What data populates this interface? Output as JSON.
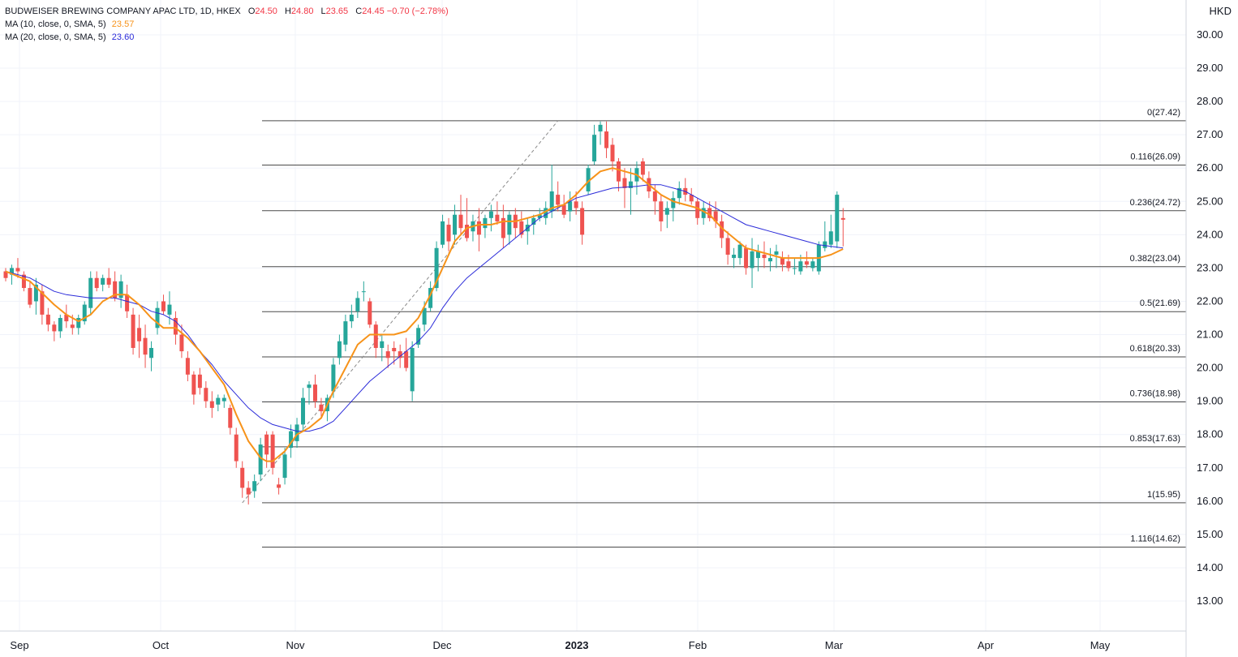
{
  "symbol": {
    "name": "BUDWEISER BREWING COMPANY APAC LTD, 1D, HKEX",
    "ohlc": [
      {
        "label": "O",
        "value": "24.50"
      },
      {
        "label": "H",
        "value": "24.80"
      },
      {
        "label": "L",
        "value": "23.65"
      },
      {
        "label": "C",
        "value": "24.45"
      }
    ],
    "change": "−0.70 (−2.78%)"
  },
  "indicators": [
    {
      "label": "MA (10, close, 0, SMA, 5)",
      "value": "23.57",
      "color": "#f7931a"
    },
    {
      "label": "MA (20, close, 0, SMA, 5)",
      "value": "23.60",
      "color": "#2b2bd9"
    }
  ],
  "currency": "HKD",
  "colors": {
    "up": "#26a69a",
    "down": "#ef5350",
    "grid": "#f0f3fa",
    "fib": "#4a4a4a"
  },
  "chart_data": {
    "type": "candlestick",
    "x_labels": [
      "Sep",
      "Oct",
      "Nov",
      "Dec",
      "2023",
      "Feb",
      "Mar",
      "Apr",
      "May"
    ],
    "y_ticks": [
      "13.00",
      "14.00",
      "15.00",
      "16.00",
      "17.00",
      "18.00",
      "19.00",
      "20.00",
      "21.00",
      "22.00",
      "23.00",
      "24.00",
      "25.00",
      "26.00",
      "27.00",
      "28.00",
      "29.00",
      "30.00"
    ],
    "ylim": [
      12.2,
      30.6
    ],
    "fib_levels": [
      {
        "ratio": 0,
        "price": 27.42,
        "label": "0(27.42)"
      },
      {
        "ratio": 0.116,
        "price": 26.09,
        "label": "0.116(26.09)"
      },
      {
        "ratio": 0.236,
        "price": 24.72,
        "label": "0.236(24.72)"
      },
      {
        "ratio": 0.382,
        "price": 23.04,
        "label": "0.382(23.04)"
      },
      {
        "ratio": 0.5,
        "price": 21.69,
        "label": "0.5(21.69)"
      },
      {
        "ratio": 0.618,
        "price": 20.33,
        "label": "0.618(20.33)"
      },
      {
        "ratio": 0.736,
        "price": 18.98,
        "label": "0.736(18.98)"
      },
      {
        "ratio": 0.853,
        "price": 17.63,
        "label": "0.853(17.63)"
      },
      {
        "ratio": 1,
        "price": 15.95,
        "label": "1(15.95)"
      },
      {
        "ratio": 1.116,
        "price": 14.62,
        "label": "1.116(14.62)"
      }
    ],
    "fib_trend": [
      [
        39,
        15.95
      ],
      [
        91,
        27.42
      ]
    ],
    "candles": [
      [
        0,
        22.9,
        23.0,
        22.6,
        22.7
      ],
      [
        1,
        22.8,
        23.1,
        22.5,
        23.0
      ],
      [
        2,
        23.0,
        23.3,
        22.7,
        22.9
      ],
      [
        3,
        22.8,
        22.9,
        22.3,
        22.4
      ],
      [
        4,
        22.4,
        22.6,
        21.8,
        21.9
      ],
      [
        5,
        22.0,
        22.7,
        21.6,
        22.5
      ],
      [
        6,
        22.3,
        22.5,
        21.3,
        21.6
      ],
      [
        7,
        21.6,
        21.8,
        21.1,
        21.3
      ],
      [
        8,
        21.3,
        21.4,
        20.8,
        21.1
      ],
      [
        9,
        21.1,
        21.6,
        20.9,
        21.5
      ],
      [
        10,
        21.6,
        21.9,
        21.2,
        21.4
      ],
      [
        11,
        21.3,
        21.6,
        21.0,
        21.2
      ],
      [
        12,
        21.2,
        21.6,
        21.0,
        21.5
      ],
      [
        13,
        21.4,
        22.0,
        21.3,
        21.9
      ],
      [
        14,
        21.8,
        22.9,
        21.6,
        22.7
      ],
      [
        15,
        22.7,
        22.9,
        22.3,
        22.4
      ],
      [
        16,
        22.5,
        22.8,
        22.3,
        22.7
      ],
      [
        17,
        22.7,
        23.0,
        22.4,
        22.5
      ],
      [
        18,
        22.6,
        22.9,
        22.0,
        22.1
      ],
      [
        19,
        22.1,
        22.8,
        21.8,
        22.6
      ],
      [
        20,
        22.2,
        22.5,
        21.5,
        21.7
      ],
      [
        21,
        21.6,
        21.8,
        20.4,
        20.6
      ],
      [
        22,
        21.2,
        21.6,
        20.3,
        20.8
      ],
      [
        23,
        20.9,
        21.3,
        20.0,
        20.4
      ],
      [
        24,
        20.3,
        20.8,
        19.9,
        20.6
      ],
      [
        25,
        21.2,
        22.0,
        21.0,
        21.8
      ],
      [
        26,
        22.0,
        22.2,
        21.6,
        21.7
      ],
      [
        27,
        21.6,
        22.3,
        21.3,
        21.9
      ],
      [
        28,
        21.5,
        21.7,
        20.7,
        21.0
      ],
      [
        29,
        21.0,
        21.3,
        20.3,
        20.5
      ],
      [
        30,
        20.3,
        20.5,
        19.6,
        19.8
      ],
      [
        31,
        19.8,
        19.9,
        18.9,
        19.2
      ],
      [
        32,
        19.8,
        20.0,
        19.2,
        19.4
      ],
      [
        33,
        19.4,
        19.6,
        18.8,
        19.0
      ],
      [
        34,
        19.0,
        19.3,
        18.5,
        18.8
      ],
      [
        35,
        18.9,
        19.2,
        18.7,
        19.1
      ],
      [
        36,
        19.0,
        19.2,
        18.8,
        19.1
      ],
      [
        37,
        18.8,
        18.9,
        18.0,
        18.2
      ],
      [
        38,
        18.0,
        18.2,
        17.0,
        17.2
      ],
      [
        39,
        17.0,
        17.2,
        16.1,
        16.4
      ],
      [
        40,
        16.4,
        16.6,
        15.9,
        16.2
      ],
      [
        41,
        16.3,
        16.8,
        16.1,
        16.6
      ],
      [
        42,
        16.8,
        17.9,
        16.6,
        17.7
      ],
      [
        43,
        18.0,
        18.1,
        17.0,
        17.4
      ],
      [
        44,
        18.0,
        18.1,
        16.8,
        17.0
      ],
      [
        45,
        16.5,
        16.7,
        16.2,
        16.4
      ],
      [
        46,
        16.7,
        17.6,
        16.5,
        17.4
      ],
      [
        47,
        17.6,
        18.3,
        17.3,
        18.1
      ],
      [
        48,
        17.8,
        18.5,
        17.6,
        18.3
      ],
      [
        49,
        18.3,
        19.4,
        18.1,
        19.1
      ],
      [
        50,
        19.4,
        19.6,
        18.9,
        19.5
      ],
      [
        51,
        19.5,
        19.8,
        18.8,
        19.0
      ],
      [
        52,
        18.9,
        19.1,
        18.5,
        18.7
      ],
      [
        53,
        18.7,
        19.2,
        18.4,
        19.1
      ],
      [
        54,
        19.3,
        20.3,
        19.1,
        20.1
      ],
      [
        55,
        20.3,
        21.0,
        20.1,
        20.8
      ],
      [
        56,
        20.7,
        21.6,
        20.5,
        21.4
      ],
      [
        57,
        21.4,
        21.9,
        21.2,
        21.6
      ],
      [
        58,
        21.7,
        22.3,
        21.5,
        22.1
      ],
      [
        59,
        22.3,
        22.6,
        22.0,
        22.3
      ],
      [
        60,
        22.0,
        22.1,
        21.2,
        21.3
      ],
      [
        61,
        21.3,
        21.4,
        20.3,
        20.6
      ],
      [
        62,
        20.6,
        21.0,
        20.2,
        20.8
      ],
      [
        63,
        20.5,
        20.7,
        20.0,
        20.3
      ],
      [
        64,
        20.6,
        20.8,
        20.1,
        20.5
      ],
      [
        65,
        20.5,
        20.7,
        20.0,
        20.3
      ],
      [
        66,
        20.5,
        20.9,
        19.9,
        20.0
      ],
      [
        67,
        19.3,
        20.8,
        19.0,
        20.6
      ],
      [
        68,
        20.7,
        21.3,
        20.6,
        21.2
      ],
      [
        69,
        21.3,
        22.0,
        21.1,
        21.8
      ],
      [
        70,
        21.8,
        22.6,
        21.7,
        22.4
      ],
      [
        71,
        22.4,
        23.8,
        22.3,
        23.6
      ],
      [
        72,
        23.7,
        24.6,
        23.6,
        24.4
      ],
      [
        73,
        24.3,
        24.5,
        23.5,
        23.8
      ],
      [
        74,
        24.0,
        24.9,
        23.7,
        24.6
      ],
      [
        75,
        24.6,
        25.2,
        24.0,
        24.2
      ],
      [
        76,
        24.3,
        25.1,
        23.8,
        23.9
      ],
      [
        77,
        24.1,
        24.6,
        23.8,
        24.4
      ],
      [
        78,
        24.4,
        24.8,
        23.5,
        24.0
      ],
      [
        79,
        24.2,
        24.6,
        23.9,
        24.5
      ],
      [
        80,
        24.5,
        24.9,
        24.1,
        24.7
      ],
      [
        81,
        24.6,
        25.0,
        24.3,
        24.4
      ],
      [
        82,
        24.5,
        24.9,
        23.6,
        23.9
      ],
      [
        83,
        24.0,
        24.7,
        23.7,
        24.6
      ],
      [
        84,
        24.6,
        24.8,
        23.9,
        24.2
      ],
      [
        85,
        24.4,
        24.7,
        23.9,
        24.0
      ],
      [
        86,
        24.1,
        24.5,
        23.7,
        24.3
      ],
      [
        87,
        24.3,
        24.6,
        24.0,
        24.5
      ],
      [
        88,
        24.5,
        24.8,
        24.4,
        24.6
      ],
      [
        89,
        24.5,
        25.0,
        24.3,
        24.8
      ],
      [
        90,
        24.7,
        26.1,
        24.5,
        25.3
      ],
      [
        91,
        25.2,
        25.6,
        24.7,
        24.9
      ],
      [
        92,
        24.9,
        25.2,
        24.5,
        24.6
      ],
      [
        93,
        24.7,
        25.3,
        24.4,
        25.0
      ],
      [
        94,
        25.0,
        25.3,
        24.6,
        24.8
      ],
      [
        95,
        24.8,
        25.0,
        23.7,
        24.0
      ],
      [
        96,
        25.3,
        26.1,
        25.2,
        26.0
      ],
      [
        97,
        26.2,
        27.3,
        26.1,
        27.0
      ],
      [
        98,
        27.1,
        27.4,
        26.7,
        27.3
      ],
      [
        99,
        27.1,
        27.4,
        26.3,
        26.6
      ],
      [
        100,
        26.7,
        26.9,
        25.9,
        26.2
      ],
      [
        101,
        26.2,
        26.3,
        25.3,
        25.6
      ],
      [
        102,
        25.7,
        26.0,
        24.8,
        25.4
      ],
      [
        103,
        25.4,
        26.0,
        24.6,
        25.6
      ],
      [
        104,
        25.6,
        26.2,
        25.2,
        26.0
      ],
      [
        105,
        26.2,
        26.3,
        25.6,
        25.8
      ],
      [
        106,
        25.7,
        25.9,
        25.1,
        25.3
      ],
      [
        107,
        25.3,
        25.5,
        24.6,
        25.0
      ],
      [
        108,
        25.0,
        25.2,
        24.1,
        24.4
      ],
      [
        109,
        24.6,
        25.0,
        24.2,
        24.8
      ],
      [
        110,
        24.8,
        25.3,
        24.4,
        25.1
      ],
      [
        111,
        25.1,
        25.6,
        24.9,
        25.4
      ],
      [
        112,
        25.4,
        25.7,
        25.0,
        25.2
      ],
      [
        113,
        25.2,
        25.4,
        24.9,
        25.0
      ],
      [
        114,
        25.0,
        25.1,
        24.3,
        24.5
      ],
      [
        115,
        24.5,
        25.0,
        24.3,
        24.8
      ],
      [
        116,
        24.8,
        25.0,
        24.4,
        24.5
      ],
      [
        117,
        24.7,
        25.0,
        24.2,
        24.4
      ],
      [
        118,
        24.4,
        24.6,
        23.6,
        23.9
      ],
      [
        119,
        23.9,
        24.1,
        23.1,
        23.4
      ],
      [
        120,
        23.3,
        23.6,
        23.0,
        23.4
      ],
      [
        121,
        23.3,
        23.8,
        23.1,
        23.7
      ],
      [
        122,
        23.6,
        23.7,
        22.8,
        23.0
      ],
      [
        123,
        23.0,
        23.9,
        22.4,
        23.5
      ],
      [
        124,
        23.3,
        23.7,
        22.9,
        23.5
      ],
      [
        125,
        23.4,
        23.8,
        23.0,
        23.3
      ],
      [
        126,
        23.2,
        23.6,
        22.9,
        23.3
      ],
      [
        127,
        23.4,
        23.7,
        23.0,
        23.5
      ],
      [
        128,
        23.3,
        23.5,
        22.9,
        23.1
      ],
      [
        129,
        23.2,
        23.4,
        22.9,
        23.0
      ],
      [
        130,
        23.0,
        23.3,
        22.8,
        23.0
      ],
      [
        131,
        22.9,
        23.4,
        22.8,
        23.2
      ],
      [
        132,
        23.2,
        23.5,
        23.0,
        23.1
      ],
      [
        133,
        23.0,
        23.3,
        22.9,
        23.2
      ],
      [
        134,
        22.9,
        23.8,
        22.8,
        23.7
      ],
      [
        135,
        23.6,
        24.4,
        23.5,
        23.8
      ],
      [
        136,
        23.7,
        24.6,
        23.6,
        24.1
      ],
      [
        137,
        23.8,
        25.3,
        23.6,
        25.2
      ],
      [
        138,
        24.5,
        24.8,
        23.65,
        24.45
      ]
    ],
    "ma10": [
      [
        0,
        22.9
      ],
      [
        4,
        22.6
      ],
      [
        8,
        21.9
      ],
      [
        10,
        21.6
      ],
      [
        12,
        21.4
      ],
      [
        14,
        21.6
      ],
      [
        16,
        22.0
      ],
      [
        18,
        22.2
      ],
      [
        20,
        22.2
      ],
      [
        22,
        21.9
      ],
      [
        24,
        21.5
      ],
      [
        26,
        21.2
      ],
      [
        28,
        21.2
      ],
      [
        30,
        20.9
      ],
      [
        32,
        20.5
      ],
      [
        34,
        20.0
      ],
      [
        36,
        19.5
      ],
      [
        38,
        18.6
      ],
      [
        40,
        17.8
      ],
      [
        42,
        17.3
      ],
      [
        43,
        17.2
      ],
      [
        44,
        17.2
      ],
      [
        46,
        17.5
      ],
      [
        48,
        18.0
      ],
      [
        50,
        18.2
      ],
      [
        52,
        18.5
      ],
      [
        54,
        19.3
      ],
      [
        56,
        20.0
      ],
      [
        58,
        20.7
      ],
      [
        60,
        21.0
      ],
      [
        62,
        21.0
      ],
      [
        64,
        21.0
      ],
      [
        66,
        21.1
      ],
      [
        68,
        21.5
      ],
      [
        70,
        22.2
      ],
      [
        72,
        23.0
      ],
      [
        74,
        23.8
      ],
      [
        76,
        24.2
      ],
      [
        78,
        24.3
      ],
      [
        80,
        24.3
      ],
      [
        82,
        24.4
      ],
      [
        84,
        24.4
      ],
      [
        86,
        24.5
      ],
      [
        88,
        24.6
      ],
      [
        90,
        24.8
      ],
      [
        92,
        24.9
      ],
      [
        94,
        25.2
      ],
      [
        96,
        25.6
      ],
      [
        98,
        25.9
      ],
      [
        100,
        26.0
      ],
      [
        102,
        25.9
      ],
      [
        104,
        25.8
      ],
      [
        106,
        25.5
      ],
      [
        108,
        25.2
      ],
      [
        110,
        25.0
      ],
      [
        112,
        24.9
      ],
      [
        114,
        24.8
      ],
      [
        116,
        24.6
      ],
      [
        118,
        24.2
      ],
      [
        120,
        23.9
      ],
      [
        122,
        23.6
      ],
      [
        124,
        23.5
      ],
      [
        126,
        23.4
      ],
      [
        128,
        23.3
      ],
      [
        130,
        23.3
      ],
      [
        132,
        23.3
      ],
      [
        134,
        23.3
      ],
      [
        136,
        23.4
      ],
      [
        138,
        23.57
      ]
    ],
    "ma20": [
      [
        0,
        22.9
      ],
      [
        4,
        22.7
      ],
      [
        6,
        22.5
      ],
      [
        8,
        22.3
      ],
      [
        10,
        22.2
      ],
      [
        14,
        22.1
      ],
      [
        18,
        22.1
      ],
      [
        20,
        22.0
      ],
      [
        22,
        21.9
      ],
      [
        24,
        21.7
      ],
      [
        26,
        21.6
      ],
      [
        28,
        21.4
      ],
      [
        30,
        21.0
      ],
      [
        32,
        20.5
      ],
      [
        34,
        20.1
      ],
      [
        36,
        19.6
      ],
      [
        38,
        19.2
      ],
      [
        40,
        18.8
      ],
      [
        42,
        18.5
      ],
      [
        44,
        18.3
      ],
      [
        46,
        18.2
      ],
      [
        48,
        18.1
      ],
      [
        50,
        18.1
      ],
      [
        52,
        18.2
      ],
      [
        54,
        18.4
      ],
      [
        56,
        18.8
      ],
      [
        58,
        19.2
      ],
      [
        60,
        19.6
      ],
      [
        62,
        19.9
      ],
      [
        64,
        20.2
      ],
      [
        66,
        20.5
      ],
      [
        68,
        20.8
      ],
      [
        70,
        21.2
      ],
      [
        72,
        21.8
      ],
      [
        74,
        22.3
      ],
      [
        76,
        22.7
      ],
      [
        78,
        23.0
      ],
      [
        80,
        23.3
      ],
      [
        82,
        23.6
      ],
      [
        84,
        23.9
      ],
      [
        86,
        24.2
      ],
      [
        88,
        24.5
      ],
      [
        90,
        24.7
      ],
      [
        92,
        24.9
      ],
      [
        94,
        25.1
      ],
      [
        96,
        25.2
      ],
      [
        98,
        25.3
      ],
      [
        100,
        25.4
      ],
      [
        104,
        25.45
      ],
      [
        106,
        25.5
      ],
      [
        108,
        25.5
      ],
      [
        110,
        25.4
      ],
      [
        112,
        25.3
      ],
      [
        114,
        25.1
      ],
      [
        116,
        24.9
      ],
      [
        118,
        24.7
      ],
      [
        120,
        24.5
      ],
      [
        122,
        24.3
      ],
      [
        124,
        24.2
      ],
      [
        126,
        24.1
      ],
      [
        128,
        24.0
      ],
      [
        130,
        23.9
      ],
      [
        132,
        23.8
      ],
      [
        134,
        23.7
      ],
      [
        136,
        23.65
      ],
      [
        138,
        23.6
      ]
    ]
  }
}
